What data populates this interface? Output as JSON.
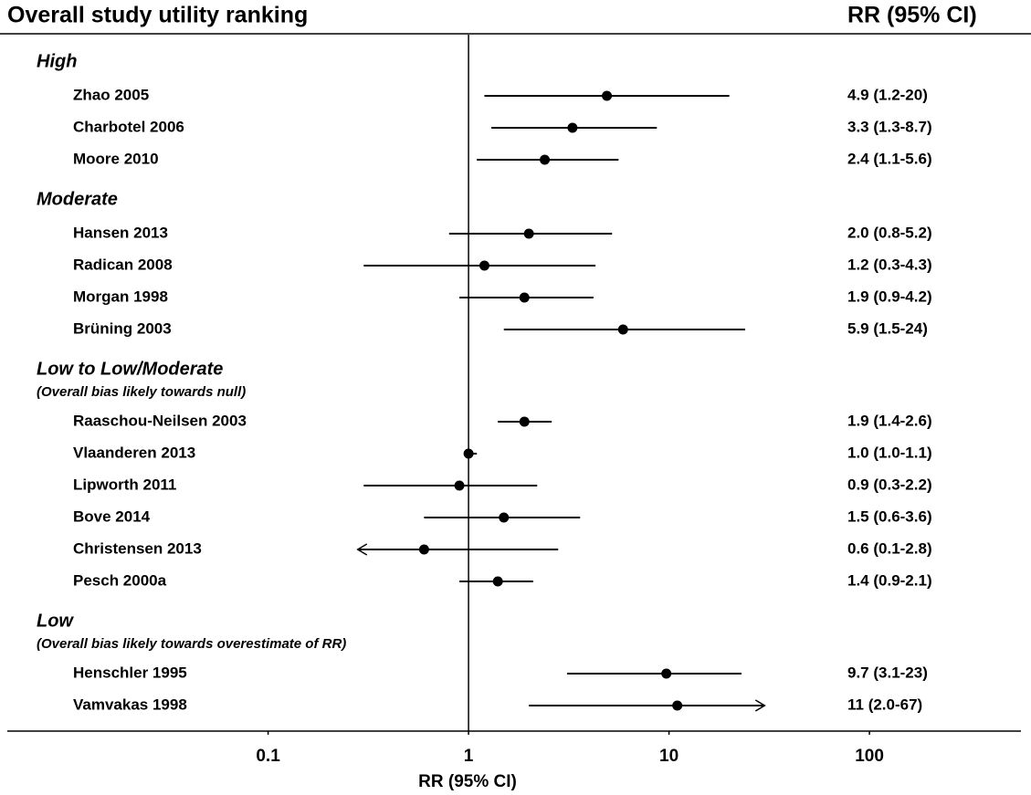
{
  "chart_data": {
    "type": "forest",
    "title": "Overall study utility ranking",
    "value_header": "RR (95% CI)",
    "x_label": "RR (95% CI)",
    "x_scale": "log",
    "xlim": [
      0.005,
      570
    ],
    "xticks": [
      0.1,
      1,
      10,
      100
    ],
    "reference_line": 1,
    "arrow_limits": [
      0.28,
      30
    ],
    "color": "#000000",
    "groups": [
      {
        "name": "High",
        "studies": [
          "Zhao 2005",
          "Charbotel 2006",
          "Moore 2010"
        ],
        "rr": [
          4.9,
          3.3,
          2.4
        ],
        "lower": [
          1.2,
          1.3,
          1.1
        ],
        "upper": [
          20,
          8.7,
          5.6
        ],
        "value_labels": [
          "4.9 (1.2-20)",
          "3.3 (1.3-8.7)",
          "2.4 (1.1-5.6)"
        ]
      },
      {
        "name": "Moderate",
        "studies": [
          "Hansen 2013",
          "Radican 2008",
          "Morgan 1998",
          "Brüning 2003"
        ],
        "rr": [
          2.0,
          1.2,
          1.9,
          5.9
        ],
        "lower": [
          0.8,
          0.3,
          0.9,
          1.5
        ],
        "upper": [
          5.2,
          4.3,
          4.2,
          24
        ],
        "value_labels": [
          "2.0 (0.8-5.2)",
          "1.2 (0.3-4.3)",
          "1.9 (0.9-4.2)",
          "5.9 (1.5-24)"
        ]
      },
      {
        "name": "Low to Low/Moderate",
        "note": "(Overall bias likely towards null)",
        "studies": [
          "Raaschou-Neilsen 2003",
          "Vlaanderen 2013",
          "Lipworth 2011",
          "Bove 2014",
          "Christensen 2013",
          "Pesch 2000a"
        ],
        "rr": [
          1.9,
          1.0,
          0.9,
          1.5,
          0.6,
          1.4
        ],
        "lower": [
          1.4,
          1.0,
          0.3,
          0.6,
          0.1,
          0.9
        ],
        "upper": [
          2.6,
          1.1,
          2.2,
          3.6,
          2.8,
          2.1
        ],
        "value_labels": [
          "1.9 (1.4-2.6)",
          "1.0 (1.0-1.1)",
          "0.9 (0.3-2.2)",
          "1.5 (0.6-3.6)",
          "0.6 (0.1-2.8)",
          "1.4 (0.9-2.1)"
        ]
      },
      {
        "name": "Low",
        "note": "(Overall bias likely towards overestimate of RR)",
        "studies": [
          "Henschler 1995",
          "Vamvakas 1998"
        ],
        "rr": [
          9.7,
          11
        ],
        "lower": [
          3.1,
          2.0
        ],
        "upper": [
          23,
          67
        ],
        "value_labels": [
          "9.7 (3.1-23)",
          "11 (2.0-67)"
        ]
      }
    ]
  }
}
